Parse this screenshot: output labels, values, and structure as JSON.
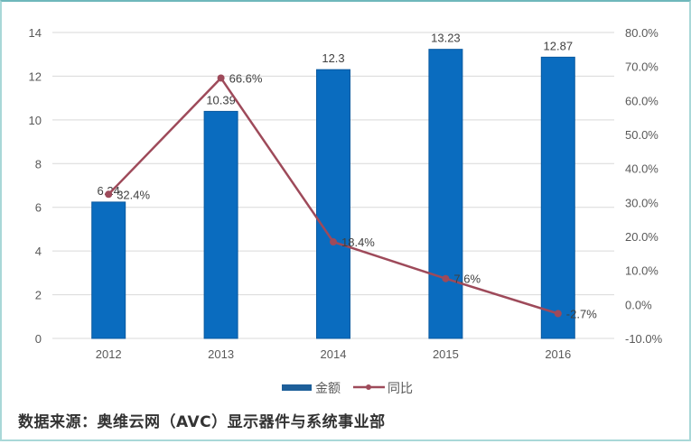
{
  "chart_data": {
    "type": "bar+line",
    "title": "",
    "categories": [
      "2012",
      "2013",
      "2014",
      "2015",
      "2016"
    ],
    "series": [
      {
        "name": "金额",
        "type": "bar",
        "axis": "left",
        "color": "#0a6cbf",
        "values": [
          6.24,
          10.39,
          12.3,
          13.23,
          12.87
        ],
        "labels": [
          "6.24",
          "10.39",
          "12.3",
          "13.23",
          "12.87"
        ]
      },
      {
        "name": "同比",
        "type": "line",
        "axis": "right",
        "color": "#9e4a5a",
        "values": [
          32.4,
          66.6,
          18.4,
          7.6,
          -2.7
        ],
        "labels": [
          "32.4%",
          "66.6%",
          "18.4%",
          "7.6%",
          "-2.7%"
        ]
      }
    ],
    "left_axis": {
      "ylim": [
        0,
        14
      ],
      "ticks": [
        "0",
        "2",
        "4",
        "6",
        "8",
        "10",
        "12",
        "14"
      ]
    },
    "right_axis": {
      "ylim": [
        -10,
        80
      ],
      "ticks": [
        "-10.0%",
        "0.0%",
        "10.0%",
        "20.0%",
        "30.0%",
        "40.0%",
        "50.0%",
        "60.0%",
        "70.0%",
        "80.0%"
      ]
    },
    "xlabel": "",
    "ylabel": "",
    "grid": true,
    "legend_position": "bottom",
    "legend": [
      "金额",
      "同比"
    ]
  },
  "source_note": "数据来源：奥维云网（AVC）显示器件与系统事业部"
}
